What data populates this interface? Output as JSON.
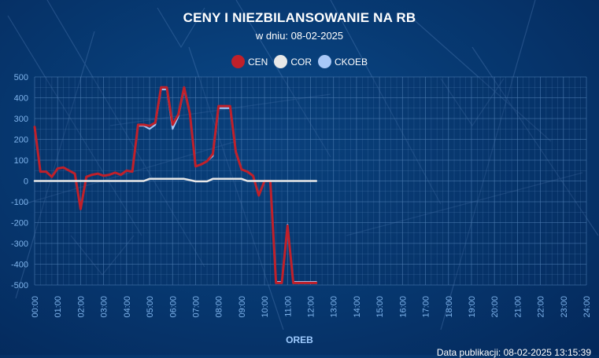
{
  "header": {
    "title": "CENY I NIEZBILANSOWANIE NA RB",
    "subtitle": "w dniu: 08-02-2025"
  },
  "footer": {
    "x_axis_title": "OREB",
    "publication": "Data publikacji: 08-02-2025 13:15:39"
  },
  "colors": {
    "cen": "#c0202a",
    "cor": "#e8e8e8",
    "ckoeb": "#a8c8f8",
    "grid": "#4f7fb5",
    "tick": "#7fb4ec"
  },
  "chart_data": {
    "type": "line",
    "title": "CENY I NIEZBILANSOWANIE NA RB",
    "subtitle": "w dniu: 08-02-2025",
    "xlabel": "OREB",
    "ylabel": "",
    "ylim": [
      -500,
      500
    ],
    "yticks": [
      500,
      400,
      300,
      200,
      100,
      0,
      -100,
      -200,
      -300,
      -400,
      -500
    ],
    "xlim": [
      "00:00",
      "24:00"
    ],
    "xticks": [
      "00:00",
      "01:00",
      "02:00",
      "03:00",
      "04:00",
      "05:00",
      "06:00",
      "07:00",
      "08:00",
      "09:00",
      "10:00",
      "11:00",
      "12:00",
      "13:00",
      "14:00",
      "15:00",
      "16:00",
      "17:00",
      "18:00",
      "19:00",
      "20:00",
      "21:00",
      "22:00",
      "23:00",
      "24:00"
    ],
    "grid": true,
    "legend_position": "top-center",
    "series": [
      {
        "name": "CEN",
        "x": [
          0,
          0.25,
          0.5,
          0.75,
          1,
          1.25,
          1.5,
          1.75,
          2,
          2.25,
          2.5,
          2.75,
          3,
          3.25,
          3.5,
          3.75,
          4,
          4.25,
          4.5,
          4.75,
          5,
          5.25,
          5.5,
          5.75,
          6,
          6.25,
          6.5,
          6.75,
          7,
          7.25,
          7.5,
          7.75,
          8,
          8.25,
          8.5,
          8.75,
          9,
          9.25,
          9.5,
          9.75,
          10,
          10.25,
          10.5,
          10.75,
          11,
          11.25,
          11.5,
          11.75,
          12,
          12.25
        ],
        "values": [
          260,
          45,
          45,
          20,
          60,
          65,
          50,
          35,
          -135,
          20,
          30,
          35,
          25,
          30,
          40,
          30,
          50,
          45,
          270,
          270,
          265,
          280,
          450,
          450,
          270,
          320,
          450,
          325,
          70,
          80,
          95,
          130,
          360,
          360,
          360,
          140,
          55,
          45,
          25,
          -70,
          0,
          0,
          -490,
          -490,
          -215,
          -490,
          -490,
          -490,
          -490,
          -490
        ]
      },
      {
        "name": "COR",
        "x": [
          0,
          0.5,
          1,
          1.5,
          2,
          2.5,
          3,
          3.5,
          4,
          4.5,
          4.75,
          5,
          5.5,
          6,
          6.5,
          7,
          7.25,
          7.5,
          7.75,
          8,
          8.5,
          9,
          9.25,
          9.5,
          10,
          10.5,
          11,
          11.5,
          12,
          12.25
        ],
        "values": [
          0,
          0,
          0,
          0,
          0,
          0,
          0,
          0,
          0,
          0,
          0,
          10,
          10,
          10,
          10,
          -2,
          -2,
          -2,
          10,
          10,
          10,
          10,
          0,
          0,
          0,
          0,
          0,
          0,
          0,
          0
        ]
      },
      {
        "name": "CKOEB",
        "x": [
          0,
          0.25,
          0.5,
          0.75,
          1,
          1.25,
          1.5,
          1.75,
          2,
          2.25,
          2.5,
          2.75,
          3,
          3.25,
          3.5,
          3.75,
          4,
          4.25,
          4.5,
          4.75,
          5,
          5.25,
          5.5,
          5.75,
          6,
          6.25,
          6.5,
          6.75,
          7,
          7.25,
          7.5,
          7.75,
          8,
          8.25,
          8.5,
          8.75,
          9,
          9.25,
          9.5,
          9.75,
          10,
          10.25,
          10.5,
          10.75,
          11,
          11.25,
          11.5,
          11.75,
          12,
          12.25
        ],
        "values": [
          255,
          45,
          45,
          20,
          60,
          65,
          50,
          35,
          -130,
          20,
          30,
          35,
          25,
          30,
          40,
          30,
          50,
          45,
          265,
          265,
          250,
          270,
          440,
          440,
          250,
          310,
          440,
          320,
          70,
          80,
          95,
          120,
          350,
          350,
          350,
          135,
          55,
          45,
          25,
          -65,
          0,
          0,
          -485,
          -485,
          -210,
          -485,
          -485,
          -485,
          -485,
          -485
        ]
      }
    ]
  }
}
